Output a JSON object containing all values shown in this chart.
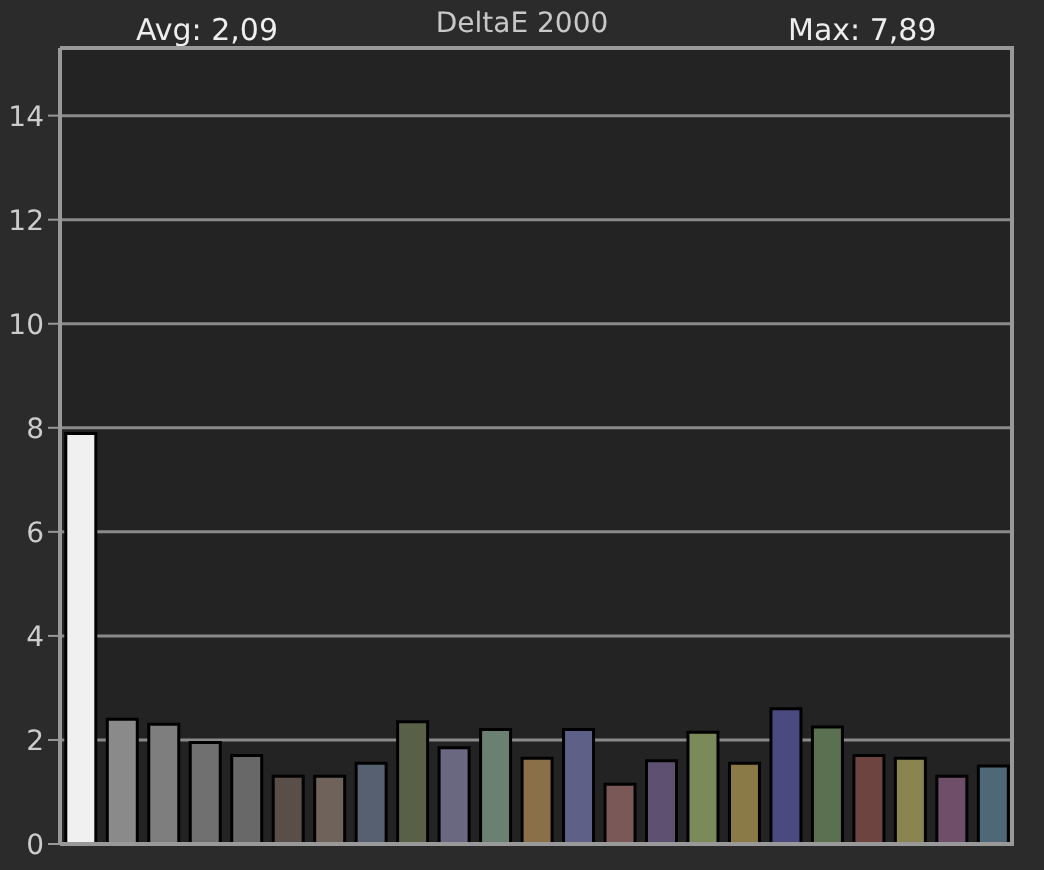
{
  "chart_data": {
    "type": "bar",
    "title": "DeltaE 2000",
    "annotations": [
      "Avg: 2,09",
      "Max: 7,89"
    ],
    "categories": [
      null,
      null,
      null,
      null,
      null,
      null,
      null,
      null,
      null,
      null,
      null,
      null,
      null,
      null,
      null,
      null,
      null,
      null,
      null,
      null,
      null,
      null,
      null
    ],
    "values": [
      7.89,
      2.4,
      2.3,
      1.95,
      1.7,
      1.3,
      1.3,
      1.55,
      2.35,
      1.85,
      2.2,
      1.65,
      2.2,
      1.15,
      1.6,
      2.15,
      1.55,
      2.6,
      2.25,
      1.7,
      1.65,
      1.3,
      1.5
    ],
    "colors": [
      "#f0f0f0",
      "#8a8a8a",
      "#7e7e7e",
      "#707070",
      "#686868",
      "#5a4e48",
      "#6e625a",
      "#566070",
      "#596048",
      "#6a6880",
      "#6a8070",
      "#8a7048",
      "#5e6088",
      "#7a5858",
      "#5e5070",
      "#7a8a58",
      "#8a7a48",
      "#4a4a80",
      "#5a7050",
      "#6e4440",
      "#8a8450",
      "#6e4e68",
      "#4e6878"
    ],
    "ylim": [
      0,
      15.3
    ],
    "yticks": [
      0,
      2,
      4,
      6,
      8,
      10,
      12,
      14
    ],
    "grid": "y",
    "tick_labels": "y"
  }
}
